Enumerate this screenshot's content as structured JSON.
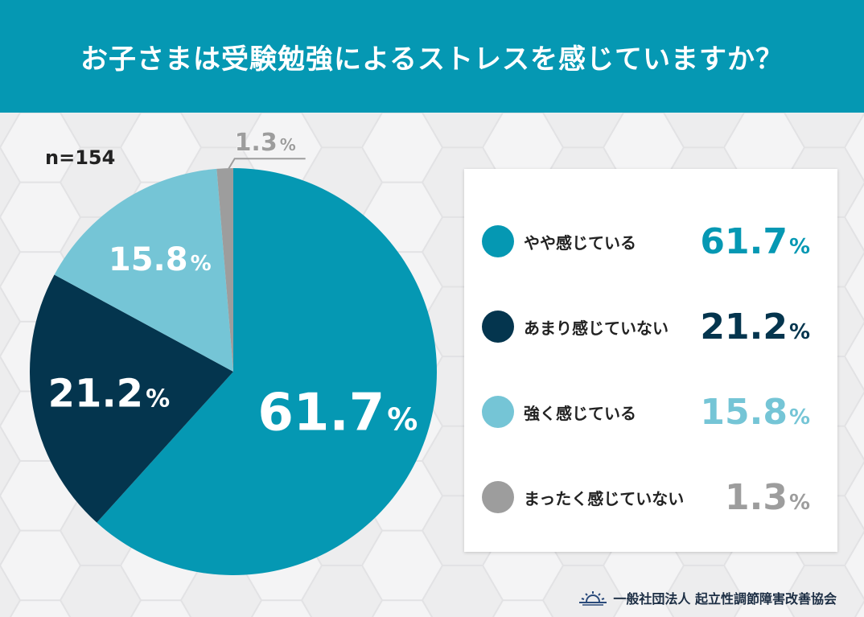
{
  "header": {
    "title": "お子さまは受験勉強によるストレスを感じていますか？"
  },
  "sample_size": "n=154",
  "chart_data": {
    "type": "pie",
    "title": "お子さまは受験勉強によるストレスを感じていますか？",
    "categories": [
      "やや感じている",
      "あまり感じていない",
      "強く感じている",
      "まったく感じていない"
    ],
    "values": [
      61.7,
      21.2,
      15.8,
      1.3
    ],
    "value_labels": [
      "61.7",
      "21.2",
      "15.8",
      "1.3"
    ],
    "unit": "%",
    "colors": [
      "#0598b3",
      "#04354e",
      "#75c5d6",
      "#9d9d9d"
    ],
    "label_colors": [
      "#ffffff",
      "#ffffff",
      "#ffffff",
      "#9d9d9d"
    ],
    "legend_value_colors": [
      "#0598b3",
      "#04354e",
      "#75c5d6",
      "#9d9d9d"
    ],
    "legend": "right"
  },
  "footer": {
    "organization": "一般社団法人 起立性調節障害改善協会",
    "logo_icon": "sunrise-icon"
  }
}
